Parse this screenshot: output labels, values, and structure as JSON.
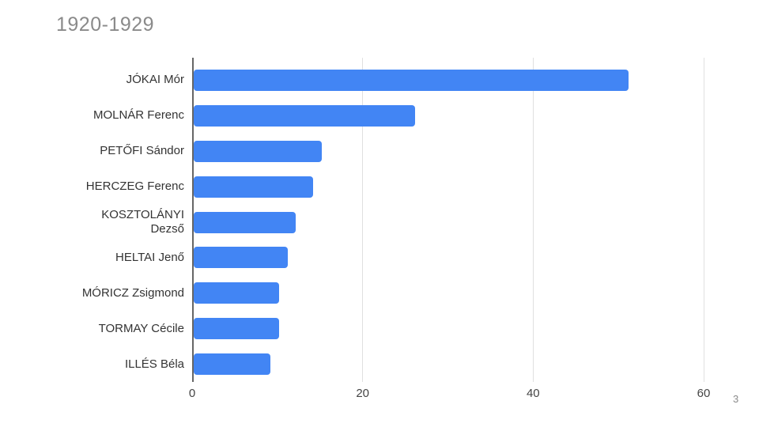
{
  "page_number": "3",
  "chart_data": {
    "type": "bar",
    "orientation": "horizontal",
    "title": "1920-1929",
    "categories": [
      "JÓKAI Mór",
      "MOLNÁR Ferenc",
      "PETŐFI Sándor",
      "HERCZEG Ferenc",
      "KOSZTOLÁNYI Dezső",
      "HELTAI Jenő",
      "MÓRICZ Zsigmond",
      "TORMAY Cécile",
      "ILLÉS Béla"
    ],
    "values": [
      51,
      26,
      15,
      14,
      12,
      11,
      10,
      10,
      9
    ],
    "xticks": [
      0,
      20,
      40,
      60
    ],
    "xlim": [
      0,
      60
    ],
    "xlabel": "",
    "ylabel": "",
    "grid": "vertical",
    "legend": "none",
    "colors": {
      "bar": "#4285f4",
      "title": "#8a8a8a",
      "axis_line": "#666666",
      "gridline": "#e0e0e0",
      "label": "#333333"
    }
  }
}
